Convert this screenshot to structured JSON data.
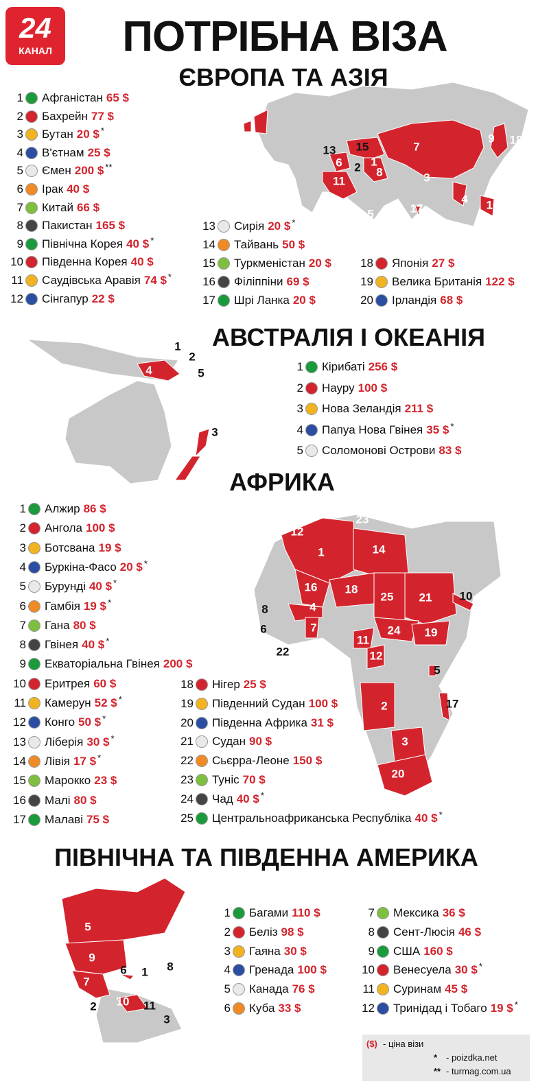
{
  "logo": {
    "number": "24",
    "text": "КАНАЛ"
  },
  "title": "ПОТРІБНА ВІЗА",
  "sections": [
    {
      "title": "ЄВРОПА ТА АЗІЯ",
      "entries": [
        {
          "number": 1,
          "country": "Афганістан",
          "price": "65 $"
        },
        {
          "number": 2,
          "country": "Бахрейн",
          "price": "77 $"
        },
        {
          "number": 3,
          "country": "Бутан",
          "price": "20 $",
          "note": "*"
        },
        {
          "number": 4,
          "country": "В'єтнам",
          "price": "25 $"
        },
        {
          "number": 5,
          "country": "Ємен",
          "price": "200 $",
          "note": "**"
        },
        {
          "number": 6,
          "country": "Ірак",
          "price": "40 $"
        },
        {
          "number": 7,
          "country": "Китай",
          "price": "66 $"
        },
        {
          "number": 8,
          "country": "Пакистан",
          "price": "165 $"
        },
        {
          "number": 9,
          "country": "Північна Корея",
          "price": "40 $",
          "note": "*"
        },
        {
          "number": 10,
          "country": "Південна Корея",
          "price": "40 $"
        },
        {
          "number": 11,
          "country": "Саудівська Аравія",
          "price": "74 $",
          "note": "*"
        },
        {
          "number": 12,
          "country": "Сінгапур",
          "price": "22 $"
        },
        {
          "number": 13,
          "country": "Сирія",
          "price": "20 $",
          "note": "*"
        },
        {
          "number": 14,
          "country": "Тайвань",
          "price": "50 $"
        },
        {
          "number": 15,
          "country": "Туркменістан",
          "price": "20 $"
        },
        {
          "number": 16,
          "country": "Філіппіни",
          "price": "69 $"
        },
        {
          "number": 17,
          "country": "Шрі Ланка",
          "price": "20 $"
        },
        {
          "number": 18,
          "country": "Японія",
          "price": "27 $"
        },
        {
          "number": 19,
          "country": "Велика Британія",
          "price": "122 $"
        },
        {
          "number": 20,
          "country": "Ірландія",
          "price": "68 $"
        }
      ],
      "map_labels": [
        "19",
        "20",
        "13",
        "15",
        "6",
        "1",
        "2",
        "11",
        "8",
        "7",
        "9",
        "18",
        "10",
        "14",
        "3",
        "4",
        "16",
        "17",
        "12",
        "5"
      ]
    },
    {
      "title": "АВСТРАЛІЯ І ОКЕАНІЯ",
      "entries": [
        {
          "number": 1,
          "country": "Кірибаті",
          "price": "256 $"
        },
        {
          "number": 2,
          "country": "Науру",
          "price": "100 $"
        },
        {
          "number": 3,
          "country": "Нова Зеландія",
          "price": "211 $"
        },
        {
          "number": 4,
          "country": "Папуа Нова Гвінея",
          "price": "35 $",
          "note": "*"
        },
        {
          "number": 5,
          "country": "Соломонові Острови",
          "price": "83 $"
        }
      ],
      "map_labels": [
        "1",
        "2",
        "5",
        "4",
        "3"
      ]
    },
    {
      "title": "АФРИКА",
      "entries": [
        {
          "number": 1,
          "country": "Алжир",
          "price": "86 $"
        },
        {
          "number": 2,
          "country": "Ангола",
          "price": "100 $"
        },
        {
          "number": 3,
          "country": "Ботсвана",
          "price": "19 $"
        },
        {
          "number": 4,
          "country": "Буркіна-Фасо",
          "price": "20 $",
          "note": "*"
        },
        {
          "number": 5,
          "country": "Бурунді",
          "price": "40 $",
          "note": "*"
        },
        {
          "number": 6,
          "country": "Гамбія",
          "price": "19 $",
          "note": "*"
        },
        {
          "number": 7,
          "country": "Гана",
          "price": "80 $"
        },
        {
          "number": 8,
          "country": "Гвінея",
          "price": "40 $",
          "note": "*"
        },
        {
          "number": 9,
          "country": "Екваторіальна Гвінея",
          "price": "200 $"
        },
        {
          "number": 10,
          "country": "Еритрея",
          "price": "60 $"
        },
        {
          "number": 11,
          "country": "Камерун",
          "price": "52 $",
          "note": "*"
        },
        {
          "number": 12,
          "country": "Конго",
          "price": "50 $",
          "note": "*"
        },
        {
          "number": 13,
          "country": "Ліберія",
          "price": "30 $",
          "note": "*"
        },
        {
          "number": 14,
          "country": "Лівія",
          "price": "17 $",
          "note": "*"
        },
        {
          "number": 15,
          "country": "Марокко",
          "price": "23 $"
        },
        {
          "number": 16,
          "country": "Малі",
          "price": "80 $"
        },
        {
          "number": 17,
          "country": "Малаві",
          "price": "75 $"
        },
        {
          "number": 18,
          "country": "Нігер",
          "price": "25 $"
        },
        {
          "number": 19,
          "country": "Південний Судан",
          "price": "100 $"
        },
        {
          "number": 20,
          "country": "Південна Африка",
          "price": "31 $"
        },
        {
          "number": 21,
          "country": "Судан",
          "price": "90 $"
        },
        {
          "number": 22,
          "country": "Сьєрра-Леоне",
          "price": "150 $"
        },
        {
          "number": 23,
          "country": "Туніс",
          "price": "70 $"
        },
        {
          "number": 24,
          "country": "Чад",
          "price": "40 $",
          "note": "*"
        },
        {
          "number": 25,
          "country": "Центральноафриканська Республіка",
          "price": "40 $",
          "note": "*"
        }
      ],
      "map_labels": [
        "23",
        "12",
        "1",
        "14",
        "16",
        "18",
        "25",
        "21",
        "10",
        "8",
        "4",
        "6",
        "7",
        "24",
        "19",
        "11",
        "22",
        "12",
        "5",
        "2",
        "17",
        "3",
        "20"
      ]
    },
    {
      "title": "ПІВНІЧНА ТА ПІВДЕННА АМЕРИКА",
      "entries": [
        {
          "number": 1,
          "country": "Багами",
          "price": "110 $"
        },
        {
          "number": 2,
          "country": "Беліз",
          "price": "98 $"
        },
        {
          "number": 3,
          "country": "Гаяна",
          "price": "30 $"
        },
        {
          "number": 4,
          "country": "Гренада",
          "price": "100 $"
        },
        {
          "number": 5,
          "country": "Канада",
          "price": "76 $"
        },
        {
          "number": 6,
          "country": "Куба",
          "price": "33 $"
        },
        {
          "number": 7,
          "country": "Мексика",
          "price": "36 $"
        },
        {
          "number": 8,
          "country": "Сент-Люсія",
          "price": "46 $"
        },
        {
          "number": 9,
          "country": "США",
          "price": "160 $"
        },
        {
          "number": 10,
          "country": "Венесуела",
          "price": "30 $",
          "note": "*"
        },
        {
          "number": 11,
          "country": "Суринам",
          "price": "45 $"
        },
        {
          "number": 12,
          "country": "Тринідад і Тобаго",
          "price": "19 $",
          "note": "*"
        }
      ],
      "map_labels": [
        "5",
        "9",
        "7",
        "6",
        "1",
        "8",
        "4",
        "12",
        "2",
        "10",
        "11",
        "3"
      ]
    }
  ],
  "legend": [
    {
      "symbol": "($)",
      "text": "- ціна візи"
    },
    {
      "symbol": "*",
      "text": "- poizdka.net"
    },
    {
      "symbol": "**",
      "text": "- turmag.com.ua"
    }
  ]
}
